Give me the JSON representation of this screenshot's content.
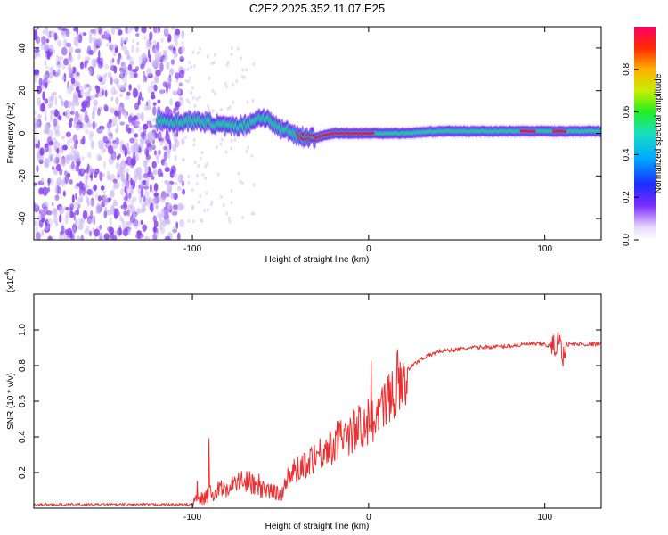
{
  "title": "C2E2.2025.352.11.07.E25",
  "colors": {
    "snr_line": "#ee2e2e",
    "ridge_low": "#5500ee",
    "ridge_mid": "#22dd88",
    "ridge_high": "#ff0033",
    "noise": "#8844ee"
  },
  "chart_data": [
    {
      "id": "spectrogram",
      "type": "heatmap",
      "xlabel": "Height of straight line (km)",
      "ylabel": "Frequency (Hz)",
      "xlim": [
        -190,
        132
      ],
      "ylim": [
        -50,
        50
      ],
      "xticks": [
        -100,
        0,
        100
      ],
      "xtick_labels": [
        "-100",
        "0",
        "100"
      ],
      "yticks": [
        -40,
        -20,
        0,
        20,
        40
      ],
      "ytick_labels": [
        "-40",
        "-20",
        "0",
        "20",
        "40"
      ],
      "colorbar": {
        "label": "Normalized spectral amplitude",
        "range": [
          0,
          1
        ],
        "ticks": [
          0.0,
          0.2,
          0.4,
          0.6,
          0.8
        ],
        "tick_labels": [
          "0.0",
          "0.2",
          "0.4",
          "0.6",
          "0.8"
        ]
      },
      "noise_region": {
        "x_range": [
          -190,
          -105
        ],
        "description_level": "low amplitude"
      },
      "ridge": {
        "x": [
          -120,
          -110,
          -100,
          -90,
          -80,
          -70,
          -60,
          -55,
          -50,
          -45,
          -40,
          -35,
          -30,
          -20,
          -10,
          0,
          10,
          20,
          40,
          60,
          80,
          90,
          100,
          110,
          120,
          132
        ],
        "freq": [
          6,
          5,
          6,
          5,
          3,
          4,
          8,
          5,
          2,
          1,
          -1,
          -2,
          -2,
          0,
          0,
          0,
          0,
          0,
          1,
          1,
          1,
          1,
          1,
          1,
          1,
          1
        ],
        "amplitude": [
          0.35,
          0.4,
          0.45,
          0.45,
          0.5,
          0.5,
          0.45,
          0.55,
          0.6,
          0.7,
          0.85,
          0.9,
          0.9,
          0.95,
          0.95,
          0.9,
          0.7,
          0.45,
          0.4,
          0.45,
          0.6,
          0.95,
          0.7,
          0.95,
          0.5,
          0.45
        ]
      }
    },
    {
      "id": "snr",
      "type": "line",
      "xlabel": "Height of straight line (km)",
      "ylabel": "SNR (10 * v/v)",
      "y_multiplier": "(x10",
      "y_multiplier_exp": "4",
      "y_multiplier_close": ")",
      "xlim": [
        -190,
        132
      ],
      "ylim": [
        0,
        1.2
      ],
      "xticks": [
        -100,
        0,
        100
      ],
      "xtick_labels": [
        "-100",
        "0",
        "100"
      ],
      "yticks": [
        0.2,
        0.4,
        0.6,
        0.8,
        1.0
      ],
      "ytick_labels": [
        "0.2",
        "0.4",
        "0.6",
        "0.8",
        "1.0"
      ],
      "series": [
        {
          "name": "SNR",
          "x": [
            -190,
            -150,
            -100,
            -95,
            -90,
            -80,
            -70,
            -60,
            -50,
            -45,
            -40,
            -35,
            -30,
            -25,
            -20,
            -15,
            -10,
            -5,
            0,
            5,
            10,
            15,
            20,
            30,
            40,
            60,
            80,
            90,
            100,
            105,
            108,
            110,
            112,
            115,
            120,
            132
          ],
          "y": [
            0.02,
            0.02,
            0.02,
            0.06,
            0.08,
            0.12,
            0.16,
            0.1,
            0.08,
            0.18,
            0.22,
            0.26,
            0.3,
            0.32,
            0.36,
            0.4,
            0.42,
            0.46,
            0.48,
            0.52,
            0.58,
            0.7,
            0.76,
            0.84,
            0.88,
            0.9,
            0.91,
            0.92,
            0.92,
            0.9,
            0.95,
            0.85,
            0.92,
            0.92,
            0.92,
            0.92
          ]
        }
      ]
    }
  ]
}
